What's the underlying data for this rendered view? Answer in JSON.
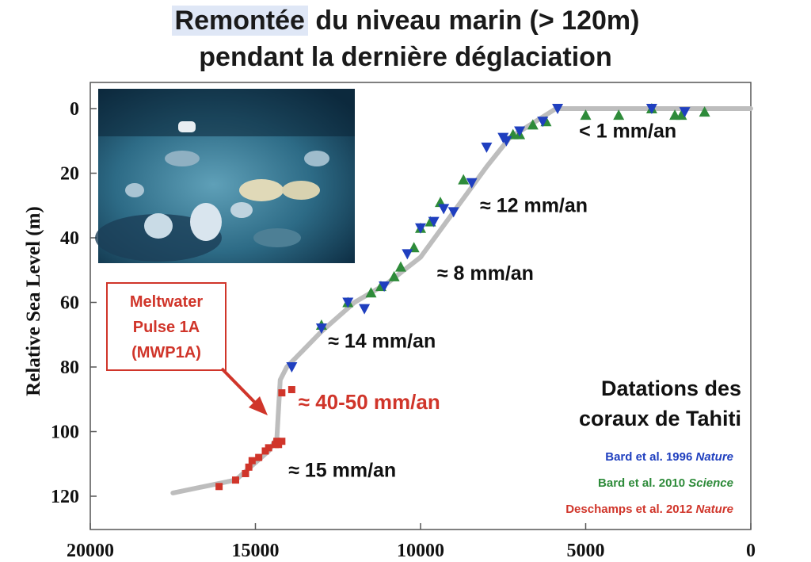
{
  "title": {
    "line1_highlight": "Remontée",
    "line1_rest": " du niveau marin (> 120m)",
    "line2": "pendant la dernière déglaciation"
  },
  "colors": {
    "bard1996": "#1f3fbf",
    "bard2010": "#2e8b3a",
    "deschamps2012": "#d0352a",
    "curve": "#bdbdbd",
    "annotation_red": "#d0352a"
  },
  "chart_data": {
    "type": "scatter",
    "ylabel": "Relative Sea Level (m)",
    "xlim": [
      20000,
      0
    ],
    "ylim": [
      130,
      -5
    ],
    "x_ticks": [
      20000,
      15000,
      10000,
      5000,
      0
    ],
    "y_ticks": [
      0,
      20,
      40,
      60,
      80,
      100,
      120
    ],
    "x_tick_labels": [
      "20000",
      "15000",
      "10000",
      "5000",
      "0"
    ],
    "y_tick_labels": [
      "0",
      "20",
      "40",
      "60",
      "80",
      "100",
      "120"
    ],
    "curve": {
      "x": [
        17500,
        15600,
        14600,
        14350,
        14250,
        14050,
        13000,
        12000,
        11000,
        10000,
        9000,
        8000,
        7300,
        5900,
        0
      ],
      "y": [
        119,
        115,
        106,
        102,
        84,
        80,
        69,
        60,
        54,
        46,
        32,
        18,
        9,
        0,
        0
      ]
    },
    "series": [
      {
        "name": "Bard et al. 1996 Nature",
        "marker": "triangle-down",
        "x": [
          13900,
          13000,
          12200,
          11700,
          11100,
          10400,
          10000,
          9600,
          9300,
          9000,
          8450,
          8000,
          7500,
          7400,
          7000,
          6300,
          5850,
          3000,
          2000
        ],
        "y": [
          80,
          68,
          60,
          62,
          55,
          45,
          37,
          35,
          31,
          32,
          23,
          12,
          9,
          10,
          7,
          4,
          0,
          0,
          1
        ]
      },
      {
        "name": "Bard et al. 2010 Science",
        "marker": "triangle-up",
        "x": [
          13000,
          12200,
          11500,
          11200,
          10800,
          10600,
          10200,
          10000,
          9700,
          9400,
          8700,
          7200,
          7000,
          6600,
          6200,
          5000,
          4000,
          3000,
          2300,
          2100,
          1400
        ],
        "y": [
          67,
          60,
          57,
          55,
          52,
          49,
          43,
          37,
          35,
          29,
          22,
          8,
          8,
          5,
          4,
          2,
          2,
          0,
          2,
          2,
          1
        ]
      },
      {
        "name": "Deschamps et al. 2012 Nature",
        "marker": "square",
        "x": [
          16100,
          15600,
          15300,
          15200,
          15100,
          14900,
          14700,
          14600,
          14400,
          14350,
          14300,
          14200,
          14200,
          13900
        ],
        "y": [
          117,
          115,
          113,
          111,
          109,
          108,
          106,
          105,
          104,
          103,
          104,
          103,
          88,
          87
        ]
      }
    ],
    "annotations": [
      {
        "text": "< 1 mm/an",
        "x": 5200,
        "y": 9
      },
      {
        "text": "≈ 12 mm/an",
        "x": 8200,
        "y": 32
      },
      {
        "text": "≈ 8 mm/an",
        "x": 9500,
        "y": 53
      },
      {
        "text": "≈ 14 mm/an",
        "x": 12800,
        "y": 74
      },
      {
        "text": "≈ 40-50 mm/an",
        "x": 13700,
        "y": 93,
        "color": "red"
      },
      {
        "text": "≈ 15 mm/an",
        "x": 14000,
        "y": 114
      }
    ],
    "mwp_box": [
      "Meltwater",
      "Pulse 1A",
      "(MWP1A)"
    ],
    "legend": {
      "title": [
        "Datations des",
        "coraux de Tahiti"
      ],
      "entries": [
        {
          "prefix": "Bard et al. 1996 ",
          "journal": "Nature",
          "color": "#1f3fbf"
        },
        {
          "prefix": "Bard et al. 2010 ",
          "journal": "Science",
          "color": "#2e8b3a"
        },
        {
          "prefix": "Deschamps et al. 2012 ",
          "journal": "Nature",
          "color": "#d0352a"
        }
      ]
    }
  }
}
